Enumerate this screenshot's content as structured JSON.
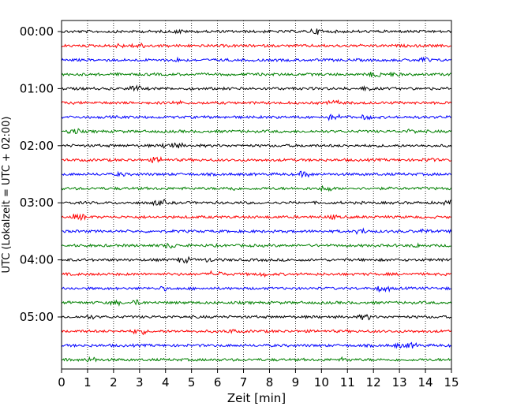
{
  "chart_data": {
    "type": "line",
    "subtype": "helicorder",
    "xlabel": "Zeit  [min]",
    "ylabel": "UTC (Lokalzeit = UTC + 02:00)",
    "xlim": [
      0,
      15
    ],
    "x_ticks": [
      "0",
      "1",
      "2",
      "3",
      "4",
      "5",
      "6",
      "7",
      "8",
      "9",
      "10",
      "11",
      "12",
      "13",
      "14",
      "15"
    ],
    "y_tick_labels": [
      "00:00",
      "01:00",
      "02:00",
      "03:00",
      "04:00",
      "05:00"
    ],
    "minutes_per_line": 15,
    "line_count": 24,
    "start_time": "00:00",
    "grid": "vertical dotted at each minute",
    "trace_colors": [
      "#000000",
      "#ff0000",
      "#0000ff",
      "#008000"
    ],
    "series": [
      {
        "start": "00:00",
        "color": "#000000"
      },
      {
        "start": "00:15",
        "color": "#ff0000"
      },
      {
        "start": "00:30",
        "color": "#0000ff"
      },
      {
        "start": "00:45",
        "color": "#008000"
      },
      {
        "start": "01:00",
        "color": "#000000"
      },
      {
        "start": "01:15",
        "color": "#ff0000"
      },
      {
        "start": "01:30",
        "color": "#0000ff"
      },
      {
        "start": "01:45",
        "color": "#008000"
      },
      {
        "start": "02:00",
        "color": "#000000"
      },
      {
        "start": "02:15",
        "color": "#ff0000"
      },
      {
        "start": "02:30",
        "color": "#0000ff"
      },
      {
        "start": "02:45",
        "color": "#008000"
      },
      {
        "start": "03:00",
        "color": "#000000"
      },
      {
        "start": "03:15",
        "color": "#ff0000"
      },
      {
        "start": "03:30",
        "color": "#0000ff"
      },
      {
        "start": "03:45",
        "color": "#008000"
      },
      {
        "start": "04:00",
        "color": "#000000"
      },
      {
        "start": "04:15",
        "color": "#ff0000"
      },
      {
        "start": "04:30",
        "color": "#0000ff"
      },
      {
        "start": "04:45",
        "color": "#008000"
      },
      {
        "start": "05:00",
        "color": "#000000"
      },
      {
        "start": "05:15",
        "color": "#ff0000"
      },
      {
        "start": "05:30",
        "color": "#0000ff"
      },
      {
        "start": "05:45",
        "color": "#008000"
      }
    ]
  }
}
